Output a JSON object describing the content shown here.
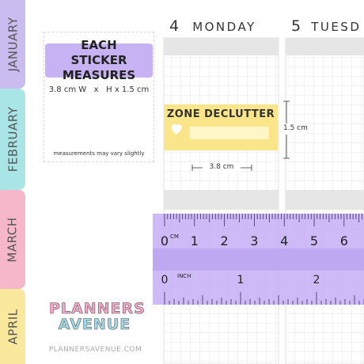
{
  "tabs": [
    "JANUARY",
    "FEBRUARY",
    "MARCH",
    "APRIL"
  ],
  "info": {
    "title": "EACH STICKER MEASURES",
    "dimensions": "3.8 cm W   x   H x 1.5 cm",
    "note": "measurements may vary slightly"
  },
  "days": [
    {
      "number": "4",
      "name": "MONDAY"
    },
    {
      "number": "5",
      "name": "TUESD"
    }
  ],
  "sticker": {
    "title": "ZONE DECLUTTER",
    "height_label": "1.5 cm",
    "width_label": "3.8 cm"
  },
  "ruler": {
    "cm_unit": "CM",
    "cm_labels": [
      "0",
      "1",
      "2",
      "3",
      "4",
      "5",
      "6"
    ],
    "inch_unit": "INCH",
    "inch_labels": [
      "0",
      "1",
      "2"
    ]
  },
  "brand": {
    "logo": [
      "PLANNERS",
      "AVENUE"
    ],
    "url": "PLANNERSAVENUE.COM"
  }
}
